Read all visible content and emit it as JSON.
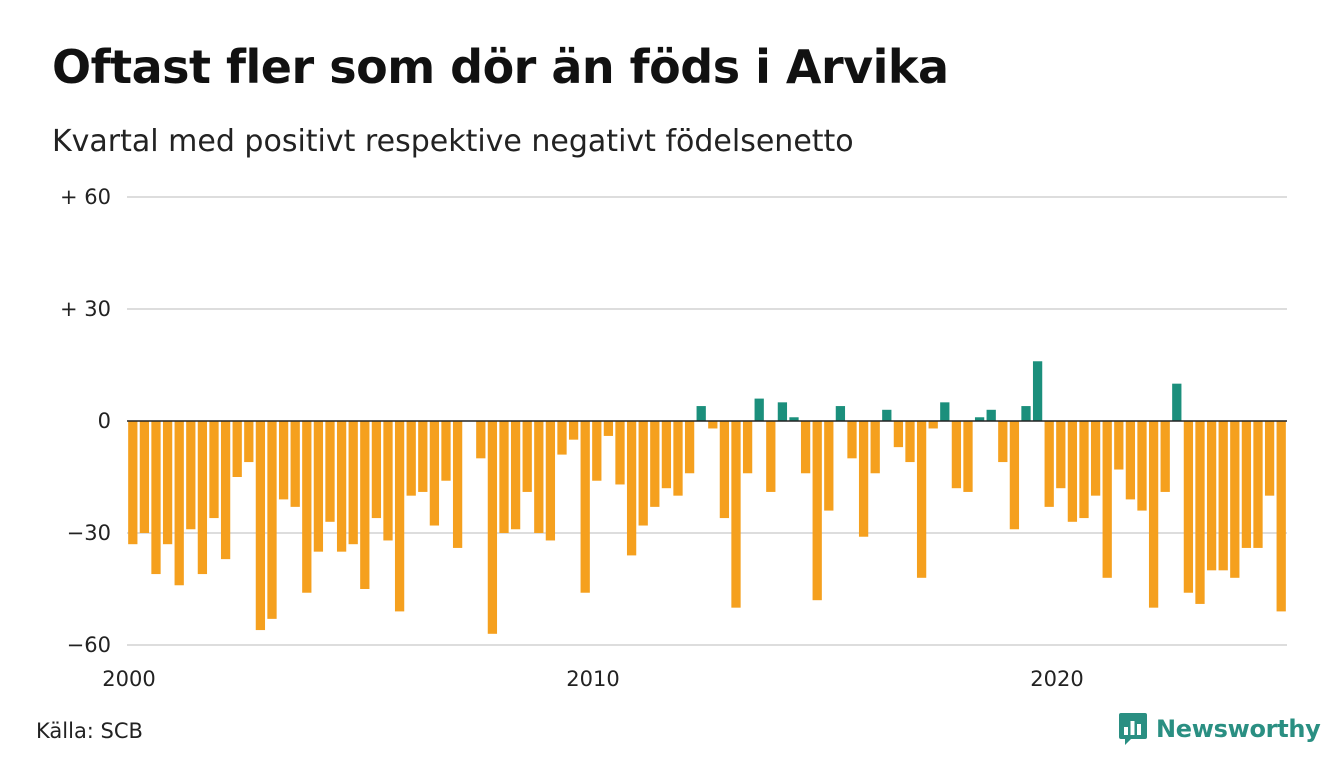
{
  "colors": {
    "positive": "#1b8f7c",
    "negative": "#f5a01e",
    "grid": "#dddddd",
    "zero_line": "#222222",
    "brand": "#2a8f82"
  },
  "source": "Källa: SCB",
  "brand": {
    "name": "Newsworthy",
    "icon": "bar-chart-speech-bubble-icon"
  },
  "chart_data": {
    "type": "bar",
    "title": "Oftast fler som dör än föds i Arvika",
    "subtitle": "Kvartal med positivt respektive negativt födelsenetto",
    "xlabel": "",
    "ylabel": "",
    "ylim": [
      -60,
      60
    ],
    "yticks": [
      {
        "value": 60,
        "label": "+ 60"
      },
      {
        "value": 30,
        "label": "+ 30"
      },
      {
        "value": 0,
        "label": "0"
      },
      {
        "value": -30,
        "label": "−30"
      },
      {
        "value": -60,
        "label": "−60"
      }
    ],
    "xticks": [
      {
        "year": 2000,
        "label": "2000"
      },
      {
        "year": 2010,
        "label": "2010"
      },
      {
        "year": 2020,
        "label": "2020"
      }
    ],
    "grid": true,
    "start": "2000 Q1",
    "frequency": "quarterly",
    "values": [
      -33,
      -30,
      -41,
      -33,
      -44,
      -29,
      -41,
      -26,
      -37,
      -15,
      -11,
      -56,
      -53,
      -21,
      -23,
      -46,
      -35,
      -27,
      -35,
      -33,
      -45,
      -26,
      -32,
      -51,
      -20,
      -19,
      -28,
      -16,
      -34,
      0,
      -10,
      -57,
      -30,
      -29,
      -19,
      -30,
      -32,
      -9,
      -5,
      -46,
      -16,
      -4,
      -17,
      -36,
      -28,
      -23,
      -18,
      -20,
      -14,
      4,
      -2,
      -26,
      -50,
      -14,
      6,
      -19,
      5,
      1,
      -14,
      -48,
      -24,
      4,
      -10,
      -31,
      -14,
      3,
      -7,
      -11,
      -42,
      -2,
      5,
      -18,
      -19,
      1,
      3,
      -11,
      -29,
      4,
      16,
      -23,
      -18,
      -27,
      -26,
      -20,
      -42,
      -13,
      -21,
      -24,
      -50,
      -19,
      10,
      -46,
      -49,
      -40,
      -40,
      -42,
      -34,
      -34,
      -20,
      -51
    ]
  }
}
